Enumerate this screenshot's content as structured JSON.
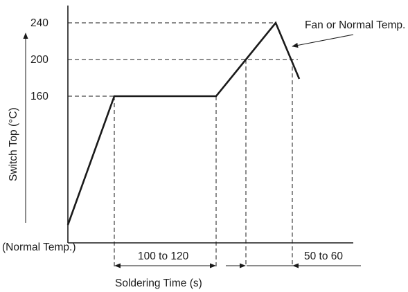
{
  "diagram": {
    "y_axis_label": "Switch Top (°C)",
    "y_ticks": [
      "240",
      "200",
      "160"
    ],
    "x_axis_label": "Soldering Time (s)",
    "origin_label": "(Normal Temp.)",
    "cooling_annotation": "Fan or Normal Temp.",
    "preheat_duration_label": "100 to 120",
    "cooling_duration_label": "50 to 60"
  },
  "chart_data": {
    "type": "line",
    "title": "",
    "xlabel": "Soldering Time (s)",
    "ylabel": "Switch Top (°C)",
    "y_ticks": [
      240,
      200,
      160
    ],
    "series": [
      {
        "name": "",
        "points": [
          {
            "t": "start",
            "y": "Normal Temp."
          },
          {
            "t": "preheat start",
            "y": 160
          },
          {
            "t": "preheat end",
            "y": 160
          },
          {
            "t": "reach 200",
            "y": 200
          },
          {
            "t": "peak",
            "y": 240
          },
          {
            "t": "cooling",
            "y": 200
          }
        ]
      }
    ],
    "annotations": [
      "100 to 120",
      "50 to 60",
      "Fan or Normal Temp.",
      "(Normal Temp.)"
    ]
  },
  "colors": {
    "line": "#1a1a1a",
    "background": "#ffffff"
  }
}
